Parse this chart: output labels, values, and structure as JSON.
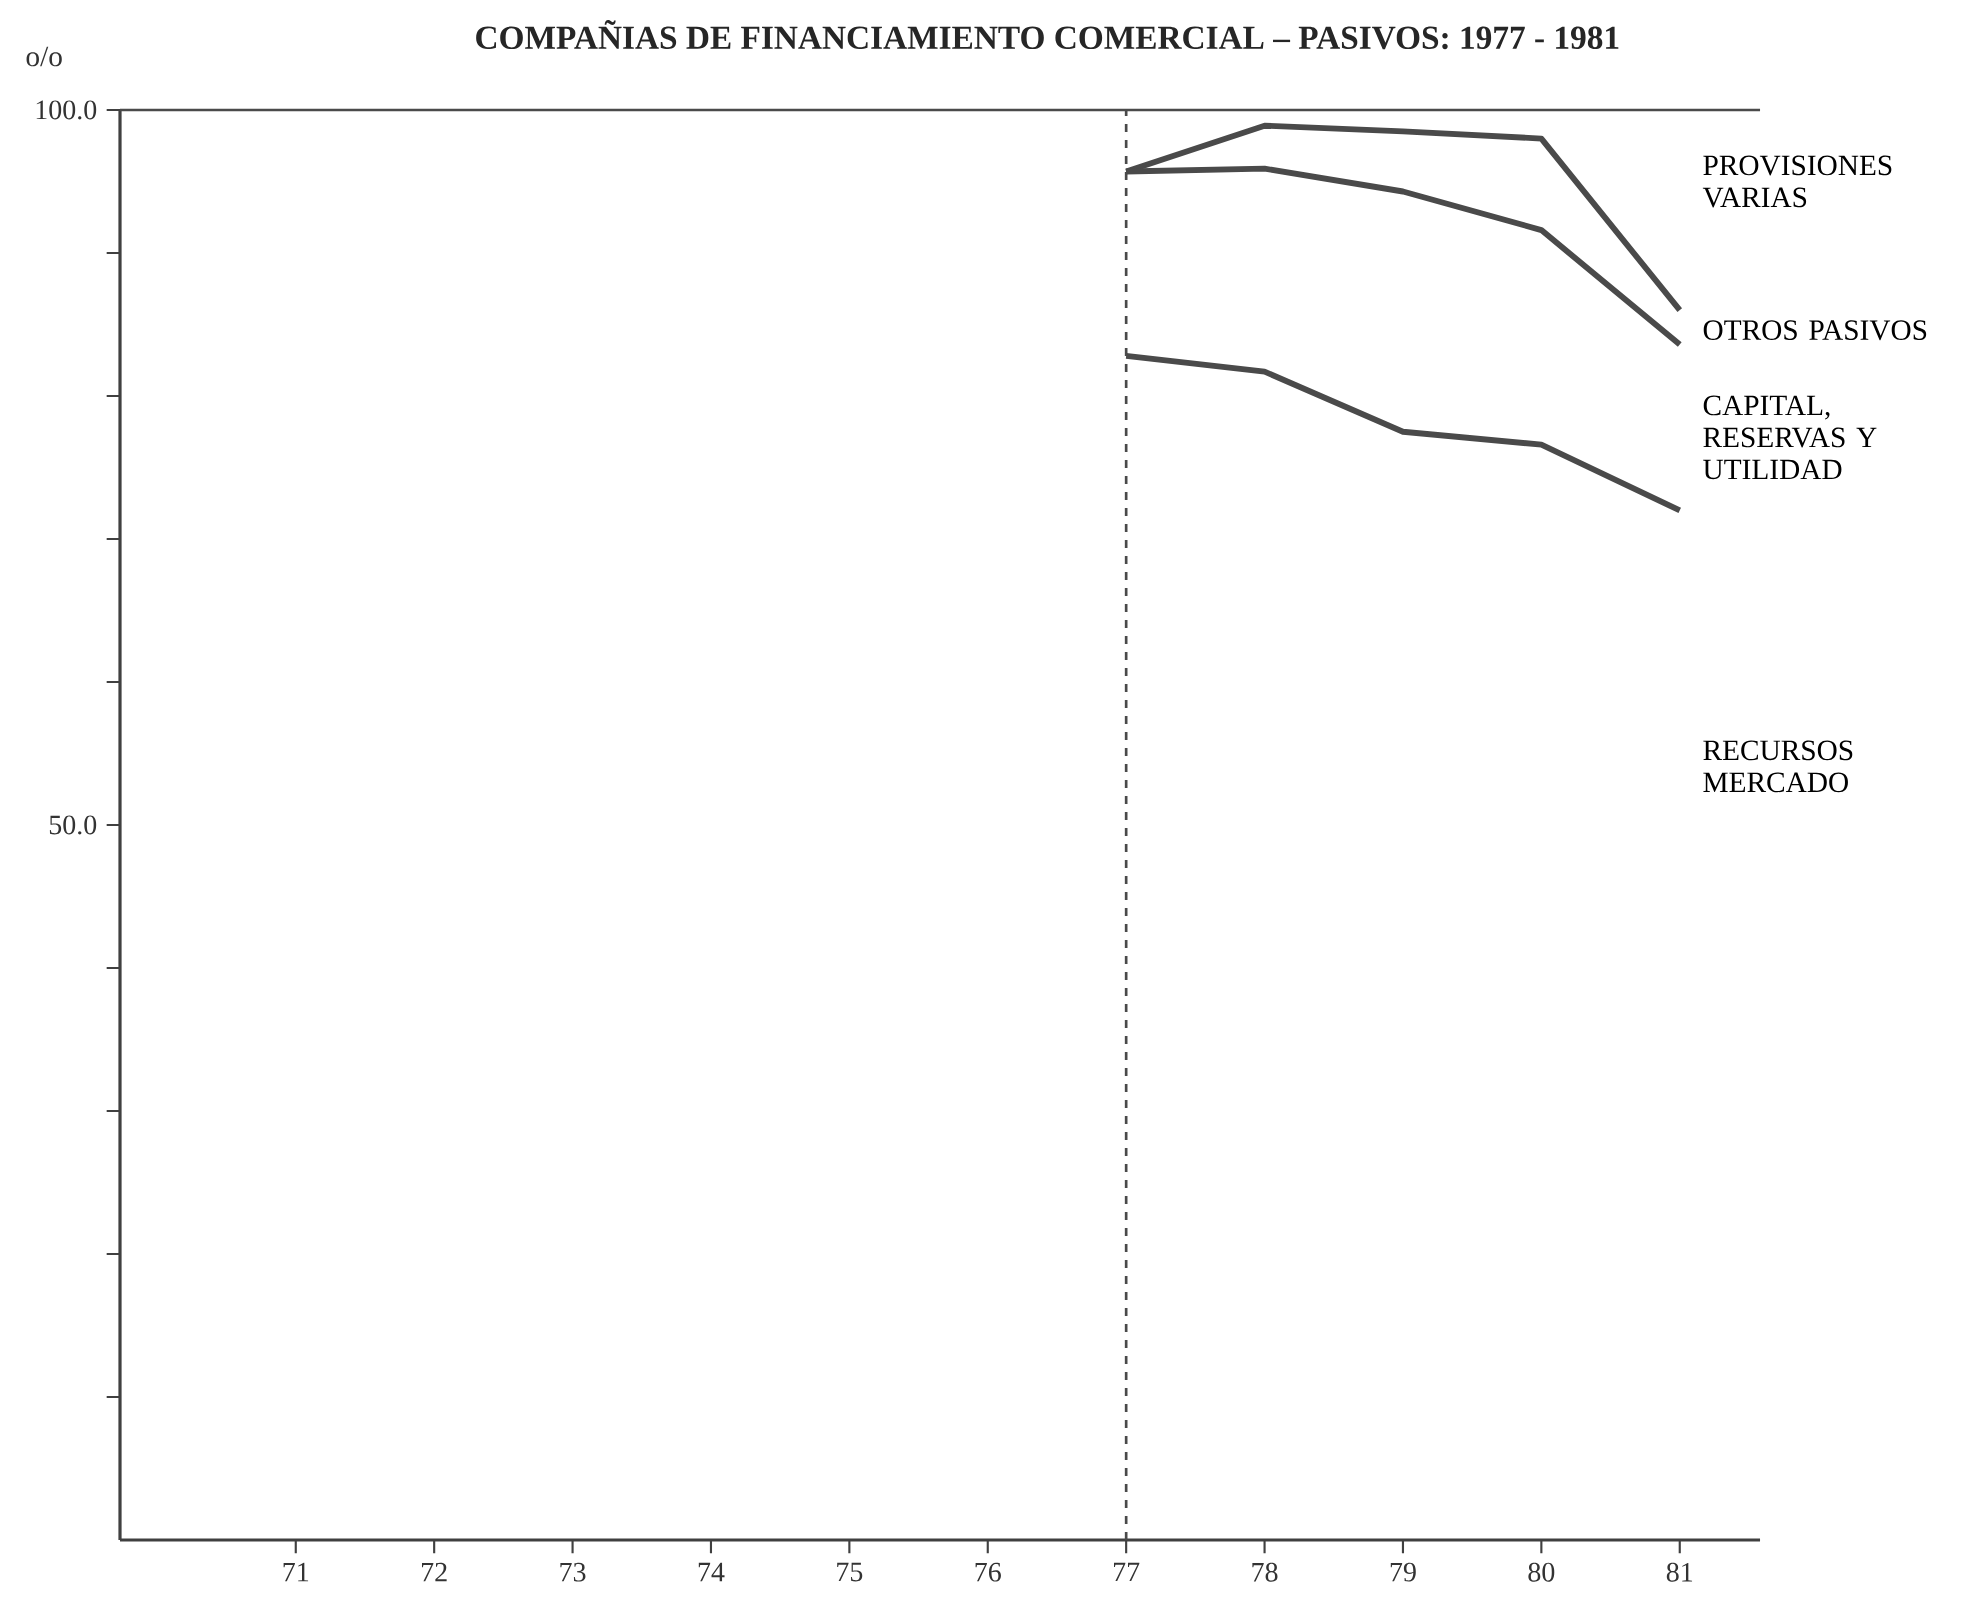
{
  "chart_data": {
    "type": "line",
    "title": "COMPAÑIAS DE FINANCIAMIENTO COMERCIAL – PASIVOS: 1977 - 1981",
    "ylabel": "o/o",
    "categories": [
      "71",
      "72",
      "73",
      "74",
      "75",
      "76",
      "77",
      "78",
      "79",
      "80",
      "81"
    ],
    "series": [
      {
        "color": "#4a4a4a",
        "values": [
          null,
          null,
          null,
          null,
          null,
          null,
          95.7,
          98.9,
          98.5,
          98.0,
          86.0
        ]
      },
      {
        "color": "#4a4a4a",
        "values": [
          null,
          null,
          null,
          null,
          null,
          null,
          95.7,
          95.9,
          94.3,
          91.6,
          83.6
        ]
      },
      {
        "color": "#4a4a4a",
        "values": [
          null,
          null,
          null,
          null,
          null,
          null,
          82.8,
          81.7,
          77.5,
          76.6,
          72.0
        ]
      }
    ],
    "ylim": [
      0,
      100
    ],
    "yticks": [
      {
        "value": 10,
        "label": null
      },
      {
        "value": 20,
        "label": null
      },
      {
        "value": 30,
        "label": null
      },
      {
        "value": 40,
        "label": null
      },
      {
        "value": 50,
        "label": "50.0"
      },
      {
        "value": 60,
        "label": null
      },
      {
        "value": 70,
        "label": null
      },
      {
        "value": 80,
        "label": null
      },
      {
        "value": 90,
        "label": null
      },
      {
        "value": 100,
        "label": "100.0"
      }
    ],
    "ref_lines": [
      {
        "axis": "x",
        "value": "77",
        "line_style": "dashed",
        "color": "#4a4a4a"
      },
      {
        "axis": "y",
        "value": 100,
        "color": "#4a4a4a"
      }
    ],
    "annotations": [
      "PROVISIONES VARIAS",
      "OTROS PASIVOS",
      "CAPITAL, RESERVAS Y UTILIDAD",
      "RECURSOS MERCADO"
    ],
    "marker": "none",
    "line_style": "solid"
  }
}
